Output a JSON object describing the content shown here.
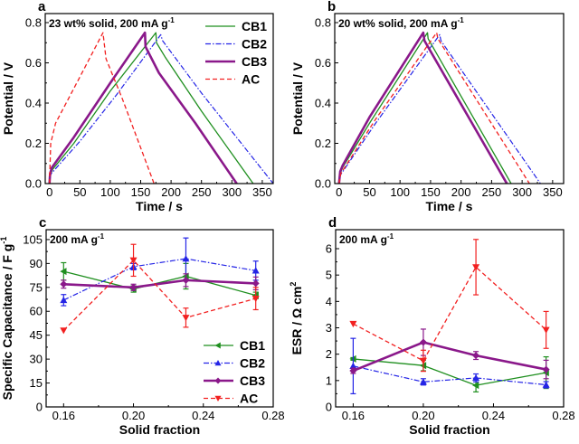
{
  "series_styles": {
    "CB1": {
      "color": "#1f8f1f",
      "dash": "",
      "width": 1.3,
      "marker": "triangle-left"
    },
    "CB2": {
      "color": "#2424e6",
      "dash": "6,2,1.5,2",
      "width": 1.2,
      "marker": "triangle-up"
    },
    "CB3": {
      "color": "#8a188a",
      "dash": "",
      "width": 2.6,
      "marker": "diamond"
    },
    "AC": {
      "color": "#f22020",
      "dash": "5,3",
      "width": 1.3,
      "marker": "triangle-down"
    }
  },
  "chart_data": [
    {
      "panel": "a",
      "type": "line",
      "annotation": "23 wt% solid, 200 mA g",
      "annotation_sup": "-1",
      "xlabel": "Time / s",
      "ylabel": "Potential / V",
      "xlim": [
        -7,
        368
      ],
      "ylim": [
        0,
        0.845
      ],
      "xticks": [
        0,
        50,
        100,
        150,
        200,
        250,
        300,
        350
      ],
      "yticks": [
        0.0,
        0.2,
        0.4,
        0.6,
        0.8
      ],
      "ytick_labels": [
        "0.0",
        "0.2",
        "0.4",
        "0.6",
        "0.8"
      ],
      "legend": "top-right",
      "series": [
        {
          "name": "CB1",
          "points": [
            [
              0,
              0
            ],
            [
              1,
              0.04
            ],
            [
              5,
              0.07
            ],
            [
              40,
              0.2
            ],
            [
              100,
              0.46
            ],
            [
              175,
              0.75
            ],
            [
              176,
              0.7
            ],
            [
              190,
              0.63
            ],
            [
              250,
              0.36
            ],
            [
              335,
              0
            ]
          ]
        },
        {
          "name": "CB2",
          "points": [
            [
              0,
              0.03
            ],
            [
              3,
              0.05
            ],
            [
              50,
              0.21
            ],
            [
              110,
              0.44
            ],
            [
              183,
              0.74
            ],
            [
              186,
              0.71
            ],
            [
              250,
              0.45
            ],
            [
              368,
              0
            ]
          ]
        },
        {
          "name": "CB3",
          "points": [
            [
              0,
              0
            ],
            [
              1,
              0.05
            ],
            [
              4,
              0.08
            ],
            [
              40,
              0.23
            ],
            [
              100,
              0.5
            ],
            [
              157,
              0.75
            ],
            [
              158,
              0.68
            ],
            [
              180,
              0.55
            ],
            [
              240,
              0.3
            ],
            [
              308,
              0
            ]
          ]
        },
        {
          "name": "AC",
          "points": [
            [
              0,
              0
            ],
            [
              2,
              0.2
            ],
            [
              10,
              0.3
            ],
            [
              50,
              0.53
            ],
            [
              88,
              0.75
            ],
            [
              93,
              0.62
            ],
            [
              120,
              0.42
            ],
            [
              172,
              0
            ]
          ]
        }
      ]
    },
    {
      "panel": "b",
      "type": "line",
      "annotation": "20 wt% solid, 200 mA g",
      "annotation_sup": "-1",
      "xlabel": "Time / s",
      "ylabel": "Potential / V",
      "xlim": [
        -7,
        368
      ],
      "ylim": [
        0,
        0.845
      ],
      "xticks": [
        0,
        50,
        100,
        150,
        200,
        250,
        300,
        350
      ],
      "yticks": [
        0.0,
        0.2,
        0.4,
        0.6,
        0.8
      ],
      "ytick_labels": [
        "0.0",
        "0.2",
        "0.4",
        "0.6",
        "0.8"
      ],
      "legend": "none",
      "series": [
        {
          "name": "CB1",
          "points": [
            [
              0,
              0
            ],
            [
              2,
              0.05
            ],
            [
              6,
              0.08
            ],
            [
              50,
              0.3
            ],
            [
              145,
              0.75
            ],
            [
              146,
              0.72
            ],
            [
              282,
              0
            ]
          ]
        },
        {
          "name": "CB2",
          "points": [
            [
              0,
              0.03
            ],
            [
              4,
              0.05
            ],
            [
              60,
              0.3
            ],
            [
              165,
              0.74
            ],
            [
              167,
              0.71
            ],
            [
              330,
              0
            ]
          ]
        },
        {
          "name": "CB3",
          "points": [
            [
              0,
              0
            ],
            [
              2,
              0.06
            ],
            [
              6,
              0.09
            ],
            [
              50,
              0.33
            ],
            [
              138,
              0.75
            ],
            [
              140,
              0.71
            ],
            [
              275,
              0
            ]
          ]
        },
        {
          "name": "AC",
          "points": [
            [
              0,
              0
            ],
            [
              3,
              0.05
            ],
            [
              60,
              0.32
            ],
            [
              160,
              0.75
            ],
            [
              162,
              0.72
            ],
            [
              312,
              0
            ]
          ]
        }
      ]
    },
    {
      "panel": "c",
      "type": "line",
      "annotation": "200 mA g",
      "annotation_sup": "-1",
      "xlabel": "Solid fraction",
      "ylabel": "Specific Capacitance / F g",
      "ylabel_sup": "-1",
      "xlim": [
        0.15,
        0.28
      ],
      "ylim": [
        0,
        111.2
      ],
      "xticks": [
        0.16,
        0.2,
        0.24,
        0.28
      ],
      "xtick_labels": [
        "0.16",
        "0.20",
        "0.24",
        "0.28"
      ],
      "yticks": [
        0,
        15,
        30,
        45,
        60,
        75,
        90,
        105
      ],
      "legend": "bottom-right",
      "x": [
        0.16,
        0.2,
        0.23,
        0.27
      ],
      "series": [
        {
          "name": "CB1",
          "values": [
            85,
            74,
            82,
            70
          ],
          "errors": [
            5.5,
            2,
            8,
            2
          ]
        },
        {
          "name": "CB2",
          "values": [
            67,
            88,
            93,
            85.5
          ],
          "errors": [
            3.5,
            2,
            13,
            6
          ]
        },
        {
          "name": "CB3",
          "values": [
            77,
            75,
            79.5,
            77.5
          ],
          "errors": [
            2.5,
            2,
            4,
            4
          ]
        },
        {
          "name": "AC",
          "values": [
            48,
            92,
            56,
            68
          ],
          "errors": [
            0,
            10,
            6,
            7
          ]
        }
      ]
    },
    {
      "panel": "d",
      "type": "line",
      "annotation": "200 mA g",
      "annotation_sup": "-1",
      "xlabel": "Solid fraction",
      "ylabel": "ESR / Ω cm",
      "ylabel_sup": "2",
      "xlim": [
        0.15,
        0.28
      ],
      "ylim": [
        0,
        6.72
      ],
      "xticks": [
        0.16,
        0.2,
        0.24,
        0.28
      ],
      "xtick_labels": [
        "0.16",
        "0.20",
        "0.24",
        "0.28"
      ],
      "yticks": [
        0,
        1,
        2,
        3,
        4,
        5,
        6
      ],
      "legend": "none",
      "x": [
        0.16,
        0.2,
        0.23,
        0.27
      ],
      "series": [
        {
          "name": "CB1",
          "values": [
            1.82,
            1.57,
            0.82,
            1.3
          ],
          "errors": [
            0.05,
            0.2,
            0.25,
            0.6
          ]
        },
        {
          "name": "CB2",
          "values": [
            1.55,
            0.95,
            1.1,
            0.84
          ],
          "errors": [
            1.05,
            0.12,
            0.15,
            0.12
          ]
        },
        {
          "name": "CB3",
          "values": [
            1.37,
            2.45,
            1.95,
            1.42
          ],
          "errors": [
            0.1,
            0.5,
            0.15,
            0.35
          ]
        },
        {
          "name": "AC",
          "values": [
            3.15,
            1.75,
            5.3,
            2.92
          ],
          "errors": [
            0,
            0.4,
            1.05,
            0.7
          ]
        }
      ]
    }
  ]
}
